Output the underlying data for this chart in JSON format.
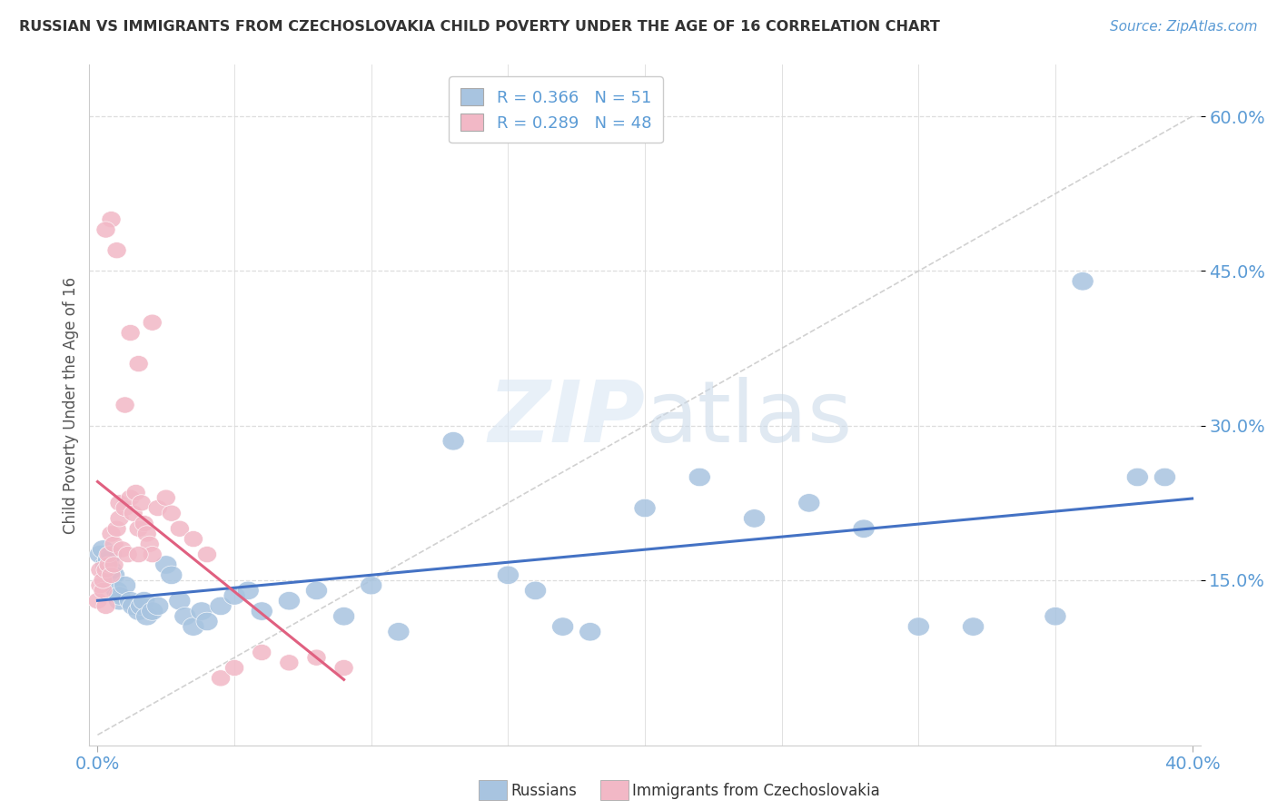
{
  "title": "RUSSIAN VS IMMIGRANTS FROM CZECHOSLOVAKIA CHILD POVERTY UNDER THE AGE OF 16 CORRELATION CHART",
  "source": "Source: ZipAtlas.com",
  "ylabel": "Child Poverty Under the Age of 16",
  "xlim": [
    -0.003,
    0.403
  ],
  "ylim": [
    -0.01,
    0.65
  ],
  "yticks": [
    0.15,
    0.3,
    0.45,
    0.6
  ],
  "ytick_labels": [
    "15.0%",
    "30.0%",
    "45.0%",
    "60.0%"
  ],
  "xtick_left": "0.0%",
  "xtick_right": "40.0%",
  "legend_label1": "Russians",
  "legend_label2": "Immigrants from Czechoslovakia",
  "watermark_zip": "ZIP",
  "watermark_atlas": "atlas",
  "russian_color": "#a8c4e0",
  "czech_color": "#f2b8c6",
  "russian_line_color": "#4472c4",
  "czech_line_color": "#e06080",
  "russian_R": 0.366,
  "russian_N": 51,
  "czech_R": 0.289,
  "czech_N": 48,
  "russians_x": [
    0.001,
    0.002,
    0.003,
    0.004,
    0.005,
    0.005,
    0.006,
    0.007,
    0.008,
    0.008,
    0.01,
    0.012,
    0.013,
    0.015,
    0.016,
    0.017,
    0.018,
    0.02,
    0.022,
    0.025,
    0.027,
    0.03,
    0.032,
    0.035,
    0.038,
    0.04,
    0.045,
    0.05,
    0.055,
    0.06,
    0.07,
    0.08,
    0.09,
    0.1,
    0.11,
    0.13,
    0.15,
    0.16,
    0.17,
    0.18,
    0.2,
    0.22,
    0.24,
    0.26,
    0.28,
    0.3,
    0.32,
    0.35,
    0.36,
    0.38,
    0.39
  ],
  "russians_y": [
    0.175,
    0.18,
    0.165,
    0.17,
    0.175,
    0.16,
    0.155,
    0.14,
    0.13,
    0.135,
    0.145,
    0.13,
    0.125,
    0.12,
    0.125,
    0.13,
    0.115,
    0.12,
    0.125,
    0.165,
    0.155,
    0.13,
    0.115,
    0.105,
    0.12,
    0.11,
    0.125,
    0.135,
    0.14,
    0.12,
    0.13,
    0.14,
    0.115,
    0.145,
    0.1,
    0.285,
    0.155,
    0.14,
    0.105,
    0.1,
    0.22,
    0.25,
    0.21,
    0.225,
    0.2,
    0.105,
    0.105,
    0.115,
    0.44,
    0.25,
    0.25
  ],
  "czechs_x": [
    0.0,
    0.001,
    0.001,
    0.002,
    0.002,
    0.003,
    0.003,
    0.004,
    0.004,
    0.005,
    0.005,
    0.006,
    0.006,
    0.007,
    0.008,
    0.008,
    0.009,
    0.01,
    0.011,
    0.012,
    0.013,
    0.014,
    0.015,
    0.016,
    0.017,
    0.018,
    0.019,
    0.02,
    0.022,
    0.025,
    0.027,
    0.03,
    0.035,
    0.04,
    0.045,
    0.05,
    0.06,
    0.07,
    0.08,
    0.09,
    0.01,
    0.012,
    0.015,
    0.02,
    0.005,
    0.007,
    0.003,
    0.015
  ],
  "czechs_y": [
    0.13,
    0.145,
    0.16,
    0.14,
    0.15,
    0.125,
    0.16,
    0.165,
    0.175,
    0.155,
    0.195,
    0.165,
    0.185,
    0.2,
    0.21,
    0.225,
    0.18,
    0.22,
    0.175,
    0.23,
    0.215,
    0.235,
    0.2,
    0.225,
    0.205,
    0.195,
    0.185,
    0.175,
    0.22,
    0.23,
    0.215,
    0.2,
    0.19,
    0.175,
    0.055,
    0.065,
    0.08,
    0.07,
    0.075,
    0.065,
    0.32,
    0.39,
    0.36,
    0.4,
    0.5,
    0.47,
    0.49,
    0.175
  ],
  "dashed_line_x": [
    0.0,
    0.4
  ],
  "dashed_line_y": [
    0.0,
    0.6
  ]
}
